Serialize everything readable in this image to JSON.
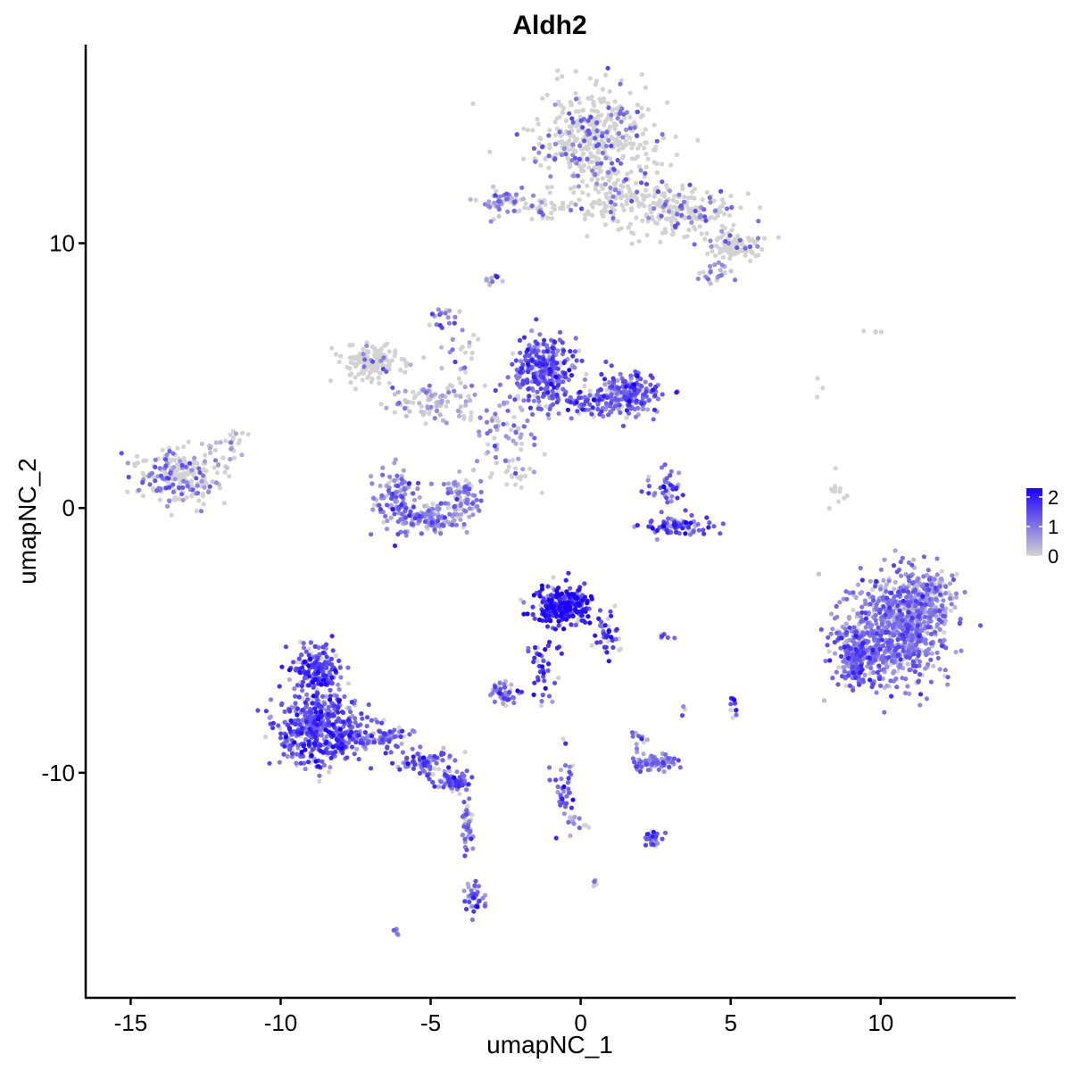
{
  "chart_data": {
    "type": "scatter",
    "title": "Aldh2",
    "xlabel": "umapNC_1",
    "ylabel": "umapNC_2",
    "xlim": [
      -16.5,
      14.5
    ],
    "ylim": [
      -18.5,
      17.5
    ],
    "xticks": [
      -15,
      -10,
      -5,
      0,
      5,
      10
    ],
    "yticks": [
      10,
      0,
      -10
    ],
    "xtick_labels": [
      "-15",
      "-10",
      "-5",
      "0",
      "5",
      "10"
    ],
    "ytick_labels": [
      "10",
      "0",
      "-10"
    ],
    "grid": false,
    "legend_position": "right",
    "color_scale": {
      "low_color": "#d3d3d3",
      "high_color": "#1a00ff",
      "min": 0,
      "max": 2.3,
      "ticks": [
        0,
        1,
        2
      ],
      "tick_labels": [
        "0",
        "1",
        "2"
      ]
    },
    "clusters": [
      {
        "cx": 0.5,
        "cy": 14.0,
        "sx": 1.3,
        "sy": 1.2,
        "n": 420,
        "mean_expr": 0.15
      },
      {
        "cx": 1.2,
        "cy": 11.8,
        "sx": 0.8,
        "sy": 0.8,
        "n": 120,
        "mean_expr": 0.1
      },
      {
        "cx": 3.4,
        "cy": 11.2,
        "sx": 1.4,
        "sy": 0.7,
        "n": 200,
        "mean_expr": 0.15
      },
      {
        "cx": 5.2,
        "cy": 9.9,
        "sx": 0.6,
        "sy": 0.3,
        "n": 110,
        "mean_expr": 0.1
      },
      {
        "cx": 4.5,
        "cy": 8.9,
        "sx": 0.4,
        "sy": 0.3,
        "n": 25,
        "mean_expr": 0.6
      },
      {
        "cx": -2.6,
        "cy": 11.5,
        "sx": 0.6,
        "sy": 0.4,
        "n": 45,
        "mean_expr": 0.8
      },
      {
        "cx": -1.2,
        "cy": 11.3,
        "sx": 0.7,
        "sy": 0.25,
        "n": 40,
        "mean_expr": 0.2
      },
      {
        "cx": -2.9,
        "cy": 8.6,
        "sx": 0.2,
        "sy": 0.15,
        "n": 10,
        "mean_expr": 0.8
      },
      {
        "cx": -4.6,
        "cy": 7.3,
        "sx": 0.25,
        "sy": 0.3,
        "n": 15,
        "mean_expr": 1.0
      },
      {
        "cx": -7.0,
        "cy": 5.5,
        "sx": 0.6,
        "sy": 0.5,
        "n": 150,
        "mean_expr": 0.05
      },
      {
        "cx": -5.0,
        "cy": 4.0,
        "sx": 1.0,
        "sy": 0.5,
        "n": 90,
        "mean_expr": 0.3
      },
      {
        "cx": -4.0,
        "cy": 5.5,
        "sx": 0.4,
        "sy": 1.2,
        "n": 30,
        "mean_expr": 0.4
      },
      {
        "cx": -1.2,
        "cy": 5.2,
        "sx": 0.7,
        "sy": 0.9,
        "n": 280,
        "mean_expr": 1.3
      },
      {
        "cx": 1.6,
        "cy": 4.3,
        "sx": 0.7,
        "sy": 0.5,
        "n": 200,
        "mean_expr": 1.2
      },
      {
        "cx": 0.3,
        "cy": 4.0,
        "sx": 0.8,
        "sy": 0.4,
        "n": 80,
        "mean_expr": 1.2
      },
      {
        "cx": -2.5,
        "cy": 3.0,
        "sx": 0.8,
        "sy": 1.0,
        "n": 70,
        "mean_expr": 0.6
      },
      {
        "cx": -2.2,
        "cy": 1.2,
        "sx": 0.5,
        "sy": 0.4,
        "n": 20,
        "mean_expr": 0.1
      },
      {
        "cx": -13.5,
        "cy": 1.2,
        "sx": 0.8,
        "sy": 0.7,
        "n": 220,
        "mean_expr": 0.25
      },
      {
        "cx": -12.0,
        "cy": 1.8,
        "sx": 0.5,
        "sy": 0.7,
        "n": 30,
        "mean_expr": 0.3
      },
      {
        "cx": -11.5,
        "cy": 2.6,
        "sx": 0.2,
        "sy": 0.2,
        "n": 8,
        "mean_expr": 0.0
      },
      {
        "cx": -6.1,
        "cy": 0.3,
        "sx": 0.5,
        "sy": 0.7,
        "n": 120,
        "mean_expr": 0.9
      },
      {
        "cx": -5.0,
        "cy": -0.4,
        "sx": 0.6,
        "sy": 0.35,
        "n": 110,
        "mean_expr": 0.7
      },
      {
        "cx": -3.9,
        "cy": 0.4,
        "sx": 0.4,
        "sy": 0.6,
        "n": 90,
        "mean_expr": 0.6
      },
      {
        "cx": 2.8,
        "cy": 0.9,
        "sx": 0.35,
        "sy": 0.45,
        "n": 40,
        "mean_expr": 1.2
      },
      {
        "cx": 3.2,
        "cy": -0.7,
        "sx": 0.7,
        "sy": 0.25,
        "n": 80,
        "mean_expr": 1.4
      },
      {
        "cx": 8.5,
        "cy": 0.3,
        "sx": 0.2,
        "sy": 0.6,
        "n": 12,
        "mean_expr": 0.0
      },
      {
        "cx": 7.9,
        "cy": 4.5,
        "sx": 0.15,
        "sy": 0.3,
        "n": 3,
        "mean_expr": 0.0
      },
      {
        "cx": 9.7,
        "cy": 6.7,
        "sx": 0.3,
        "sy": 0.1,
        "n": 4,
        "mean_expr": 0.0
      },
      {
        "cx": 10.6,
        "cy": -4.6,
        "sx": 1.1,
        "sy": 1.3,
        "n": 750,
        "mean_expr": 0.9
      },
      {
        "cx": 9.2,
        "cy": -5.6,
        "sx": 0.5,
        "sy": 0.8,
        "n": 220,
        "mean_expr": 1.1
      },
      {
        "cx": 11.6,
        "cy": -3.4,
        "sx": 0.6,
        "sy": 0.7,
        "n": 200,
        "mean_expr": 0.6
      },
      {
        "cx": -0.5,
        "cy": -3.7,
        "sx": 0.65,
        "sy": 0.5,
        "n": 260,
        "mean_expr": 1.9
      },
      {
        "cx": 0.9,
        "cy": -4.8,
        "sx": 0.3,
        "sy": 0.6,
        "n": 40,
        "mean_expr": 1.7
      },
      {
        "cx": -1.3,
        "cy": -5.9,
        "sx": 0.3,
        "sy": 0.8,
        "n": 40,
        "mean_expr": 1.6
      },
      {
        "cx": -2.6,
        "cy": -7.0,
        "sx": 0.35,
        "sy": 0.3,
        "n": 50,
        "mean_expr": 1.1
      },
      {
        "cx": -8.8,
        "cy": -6.1,
        "sx": 0.5,
        "sy": 0.6,
        "n": 180,
        "mean_expr": 1.5
      },
      {
        "cx": -8.6,
        "cy": -8.3,
        "sx": 1.0,
        "sy": 0.9,
        "n": 500,
        "mean_expr": 1.4
      },
      {
        "cx": -6.6,
        "cy": -8.7,
        "sx": 0.6,
        "sy": 0.3,
        "n": 60,
        "mean_expr": 1.1
      },
      {
        "cx": -5.3,
        "cy": -9.6,
        "sx": 0.6,
        "sy": 0.3,
        "n": 80,
        "mean_expr": 1.2
      },
      {
        "cx": -4.3,
        "cy": -10.3,
        "sx": 0.4,
        "sy": 0.25,
        "n": 60,
        "mean_expr": 1.3
      },
      {
        "cx": -3.8,
        "cy": -12.0,
        "sx": 0.12,
        "sy": 1.1,
        "n": 40,
        "mean_expr": 0.9
      },
      {
        "cx": -3.5,
        "cy": -14.7,
        "sx": 0.25,
        "sy": 0.4,
        "n": 40,
        "mean_expr": 1.1
      },
      {
        "cx": -6.1,
        "cy": -16.0,
        "sx": 0.1,
        "sy": 0.1,
        "n": 4,
        "mean_expr": 1.2
      },
      {
        "cx": -0.5,
        "cy": -10.8,
        "sx": 0.25,
        "sy": 1.0,
        "n": 40,
        "mean_expr": 1.3
      },
      {
        "cx": -0.1,
        "cy": -11.9,
        "sx": 0.2,
        "sy": 0.3,
        "n": 10,
        "mean_expr": 0.5
      },
      {
        "cx": 0.5,
        "cy": -14.2,
        "sx": 0.1,
        "sy": 0.1,
        "n": 4,
        "mean_expr": 0.3
      },
      {
        "cx": 2.4,
        "cy": -9.6,
        "sx": 0.5,
        "sy": 0.2,
        "n": 80,
        "mean_expr": 0.9
      },
      {
        "cx": 2.0,
        "cy": -8.8,
        "sx": 0.2,
        "sy": 0.3,
        "n": 12,
        "mean_expr": 0.9
      },
      {
        "cx": 2.4,
        "cy": -12.5,
        "sx": 0.2,
        "sy": 0.2,
        "n": 25,
        "mean_expr": 1.5
      },
      {
        "cx": 2.8,
        "cy": -4.9,
        "sx": 0.3,
        "sy": 0.1,
        "n": 6,
        "mean_expr": 1.0
      },
      {
        "cx": 3.4,
        "cy": -7.7,
        "sx": 0.1,
        "sy": 0.15,
        "n": 3,
        "mean_expr": 1.5
      },
      {
        "cx": 5.1,
        "cy": -7.4,
        "sx": 0.1,
        "sy": 0.35,
        "n": 12,
        "mean_expr": 1.6
      },
      {
        "cx": -0.9,
        "cy": -7.3,
        "sx": 0.1,
        "sy": 0.1,
        "n": 2,
        "mean_expr": 1.4
      }
    ]
  }
}
